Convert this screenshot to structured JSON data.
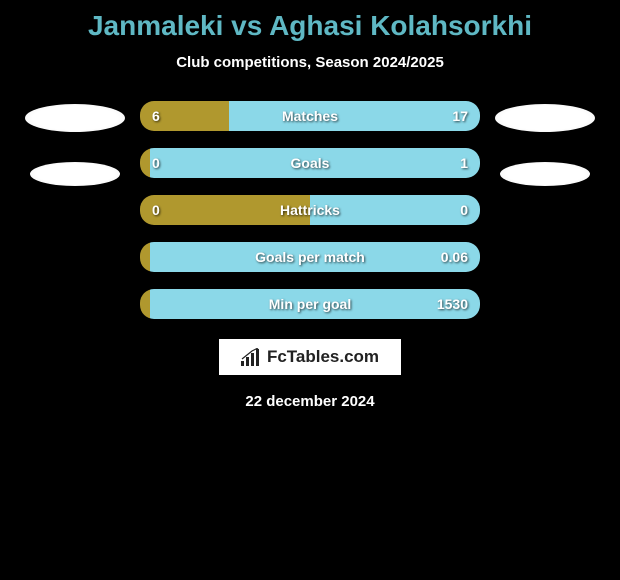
{
  "title": "Janmaleki vs Aghasi Kolahsorkhi",
  "subtitle": "Club competitions, Season 2024/2025",
  "colors": {
    "title_color": "#5fb8c4",
    "text_color": "#ffffff",
    "background": "#000000",
    "left_bar": "#b0982e",
    "right_bar": "#8bd8e8",
    "brand_bg": "#ffffff",
    "brand_text": "#222222"
  },
  "typography": {
    "title_fontsize": 28,
    "subtitle_fontsize": 15,
    "bar_label_fontsize": 14,
    "bar_value_fontsize": 14,
    "brand_fontsize": 17,
    "date_fontsize": 15
  },
  "bars": [
    {
      "label": "Matches",
      "left_val": "6",
      "right_val": "17",
      "left_pct": 26.1
    },
    {
      "label": "Goals",
      "left_val": "0",
      "right_val": "1",
      "left_pct": 3.0
    },
    {
      "label": "Hattricks",
      "left_val": "0",
      "right_val": "0",
      "left_pct": 50.0
    },
    {
      "label": "Goals per match",
      "left_val": "",
      "right_val": "0.06",
      "left_pct": 3.0
    },
    {
      "label": "Min per goal",
      "left_val": "",
      "right_val": "1530",
      "left_pct": 3.0
    }
  ],
  "bar_style": {
    "height": 30,
    "border_radius": 14,
    "gap": 17,
    "container_width": 340
  },
  "brand": "FcTables.com",
  "date": "22 december 2024"
}
